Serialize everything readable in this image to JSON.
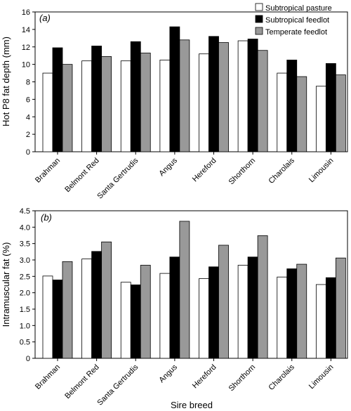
{
  "figure": {
    "xlabel": "Sire breed"
  },
  "colors": {
    "Subtropical pasture": "#ffffff",
    "Subtropical feedlot": "#000000",
    "Temperate feedlot": "#999999"
  },
  "chart_data": [
    {
      "type": "bar",
      "panel_label": "(a)",
      "ylabel": "Hot P8 fat depth (mm)",
      "xlabel": "",
      "categories": [
        "Brahman",
        "Belmont Red",
        "Santa Gertrudis",
        "Angus",
        "Hereford",
        "Shorthorn",
        "Charolais",
        "Limousin"
      ],
      "series": [
        {
          "name": "Subtropical pasture",
          "values": [
            9.0,
            10.4,
            10.4,
            10.5,
            11.2,
            12.7,
            9.0,
            7.5
          ]
        },
        {
          "name": "Subtropical feedlot",
          "values": [
            11.9,
            12.1,
            12.6,
            14.3,
            13.2,
            12.9,
            10.5,
            10.1
          ]
        },
        {
          "name": "Temperate feedlot",
          "values": [
            10.0,
            10.9,
            11.3,
            12.8,
            12.5,
            11.6,
            8.6,
            8.8
          ]
        }
      ],
      "yticks": [
        "0",
        "2",
        "4",
        "6",
        "8",
        "10",
        "12",
        "14",
        "16"
      ],
      "ylim": [
        0,
        16
      ],
      "legend": "top-right"
    },
    {
      "type": "bar",
      "panel_label": "(b)",
      "ylabel": "Intramuscular fat (%)",
      "xlabel": "Sire breed",
      "categories": [
        "Brahman",
        "Belmont Red",
        "Santa Gertrudis",
        "Angus",
        "Hereford",
        "Shorthorn",
        "Charolais",
        "Limousin"
      ],
      "series": [
        {
          "name": "Subtropical pasture",
          "values": [
            2.51,
            3.03,
            2.32,
            2.59,
            2.43,
            2.84,
            2.48,
            2.25
          ]
        },
        {
          "name": "Subtropical feedlot",
          "values": [
            2.39,
            3.26,
            2.24,
            3.09,
            2.79,
            3.09,
            2.73,
            2.46
          ]
        },
        {
          "name": "Temperate feedlot",
          "values": [
            2.95,
            3.55,
            2.84,
            4.18,
            3.45,
            3.74,
            2.87,
            3.06
          ]
        }
      ],
      "yticks": [
        "0",
        "0.5",
        "1.0",
        "1.5",
        "2.0",
        "2.5",
        "3.0",
        "3.5",
        "4.0",
        "4.5"
      ],
      "ylim": [
        0,
        4.5
      ],
      "legend": "none"
    }
  ]
}
